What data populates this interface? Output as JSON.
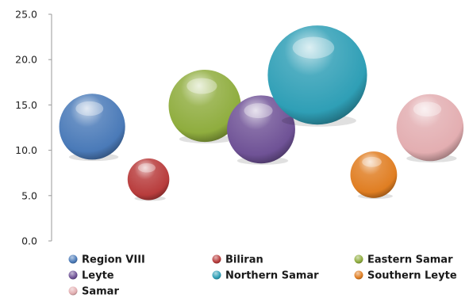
{
  "chart_data": {
    "type": "bubble",
    "title": "",
    "xlabel": "",
    "ylabel": "",
    "ylim": [
      0,
      25
    ],
    "y_ticks": [
      "0.0",
      "5.0",
      "10.0",
      "15.0",
      "20.0",
      "25.0"
    ],
    "grid": false,
    "legend_position": "bottom",
    "series": [
      {
        "name": "Region VIII",
        "x": 1.0,
        "y": 12.6,
        "size": 3.0,
        "color": "#4a7ab8"
      },
      {
        "name": "Biliran",
        "x": 2.0,
        "y": 6.8,
        "size": 1.2,
        "color": "#b83c3c"
      },
      {
        "name": "Eastern Samar",
        "x": 3.0,
        "y": 14.9,
        "size": 3.6,
        "color": "#8fad3e"
      },
      {
        "name": "Leyte",
        "x": 4.0,
        "y": 12.3,
        "size": 3.2,
        "color": "#6f5296"
      },
      {
        "name": "Northern Samar",
        "x": 5.0,
        "y": 18.3,
        "size": 6.8,
        "color": "#2f9fb6"
      },
      {
        "name": "Southern Leyte",
        "x": 6.0,
        "y": 7.3,
        "size": 1.5,
        "color": "#e07e22"
      },
      {
        "name": "Samar",
        "x": 7.0,
        "y": 12.5,
        "size": 3.1,
        "color": "#e3aeb1"
      }
    ]
  }
}
